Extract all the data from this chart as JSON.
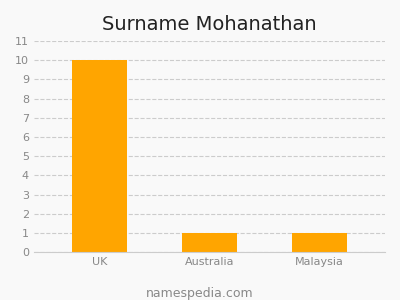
{
  "title": "Surname Mohanathan",
  "categories": [
    "UK",
    "Australia",
    "Malaysia"
  ],
  "values": [
    10,
    1,
    1
  ],
  "bar_color": "#FFA500",
  "ylim": [
    0,
    11
  ],
  "yticks": [
    0,
    1,
    2,
    3,
    4,
    5,
    6,
    7,
    8,
    9,
    10,
    11
  ],
  "title_fontsize": 14,
  "tick_fontsize": 8,
  "footer_text": "namespedia.com",
  "footer_fontsize": 9,
  "background_color": "#f9f9f9",
  "grid_color": "#cccccc",
  "bar_width": 0.5,
  "bar_positions": [
    0.15,
    0.5,
    0.85
  ]
}
